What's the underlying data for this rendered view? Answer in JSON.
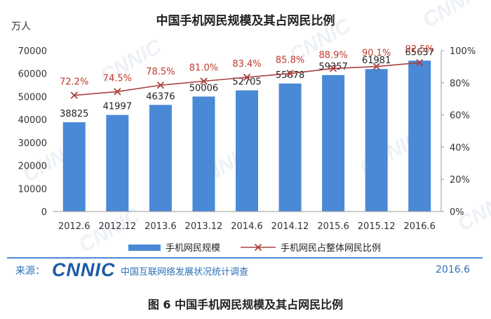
{
  "chart_data": {
    "type": "bar+line",
    "title": "中国手机网民规模及其占网民比例",
    "y_left_unit": "万人",
    "categories": [
      "2012.6",
      "2012.12",
      "2013.6",
      "2013.12",
      "2014.6",
      "2014.12",
      "2015.6",
      "2015.12",
      "2016.6"
    ],
    "series": [
      {
        "name": "手机网民规模",
        "kind": "bar",
        "axis": "left",
        "color": "#4a89d6",
        "values": [
          38825,
          41997,
          46376,
          50006,
          52705,
          55678,
          59357,
          61981,
          65637
        ]
      },
      {
        "name": "手机网民占整体网民比例",
        "kind": "line",
        "axis": "right",
        "color": "#c0392b",
        "values": [
          72.2,
          74.5,
          78.5,
          81.0,
          83.4,
          85.8,
          88.9,
          90.1,
          92.5
        ],
        "labels": [
          "72.2%",
          "74.5%",
          "78.5%",
          "81.0%",
          "83.4%",
          "85.8%",
          "88.9%",
          "90.1%",
          "92.5%"
        ]
      }
    ],
    "y_left": {
      "min": 0,
      "max": 70000,
      "ticks": [
        "0",
        "10000",
        "20000",
        "30000",
        "40000",
        "50000",
        "60000",
        "70000"
      ]
    },
    "y_right": {
      "min": 0,
      "max": 100,
      "ticks": [
        "0%",
        "20%",
        "40%",
        "60%",
        "80%",
        "100%"
      ]
    },
    "legend_position": "bottom",
    "grid": false
  },
  "footer": {
    "source_label": "来源：",
    "logo_text": "CNNIC",
    "organization": "中国互联网络发展状况统计调查",
    "date": "2016.6"
  },
  "caption": "图 6 中国手机网民规模及其占网民比例",
  "watermark": "CNNIC"
}
